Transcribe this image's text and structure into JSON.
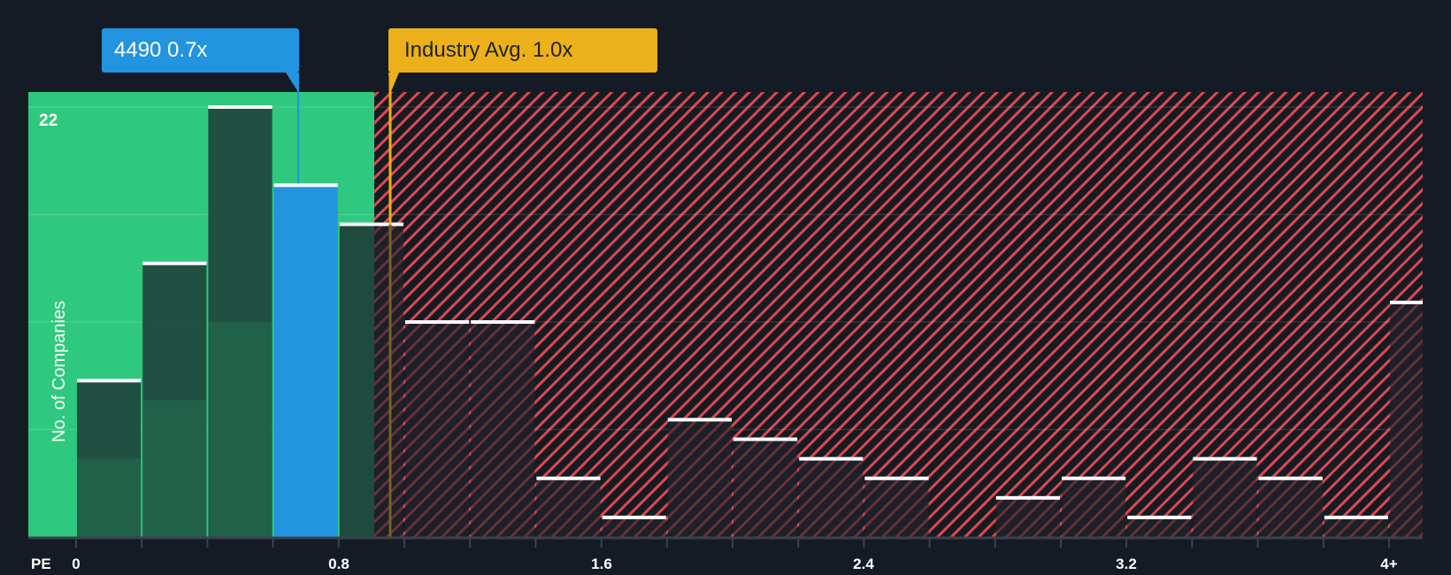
{
  "chart_data": {
    "type": "bar",
    "title": "",
    "xlabel": "PE",
    "ylabel": "No. of Companies",
    "x_tick_labels": [
      "0",
      "0.8",
      "1.6",
      "2.4",
      "3.2",
      "4+"
    ],
    "x_tick_values": [
      0,
      0.8,
      1.6,
      2.4,
      3.2,
      4.0
    ],
    "y_tick_labels": [
      "22"
    ],
    "ylim": [
      0,
      22
    ],
    "grid": true,
    "bin_width": 0.2,
    "categories": [
      "0-0.2",
      "0.2-0.4",
      "0.4-0.6",
      "0.6-0.8",
      "0.8-1.0",
      "1.0-1.2",
      "1.2-1.4",
      "1.4-1.6",
      "1.6-1.8",
      "1.8-2.0",
      "2.0-2.2",
      "2.2-2.4",
      "2.4-2.6",
      "2.6-2.8",
      "2.8-3.0",
      "3.0-3.2",
      "3.2-3.4",
      "3.4-3.6",
      "3.6-3.8",
      "3.8-4.0",
      "4+"
    ],
    "values": [
      8,
      14,
      22,
      18,
      16,
      11,
      11,
      3,
      1,
      6,
      5,
      4,
      3,
      0,
      2,
      3,
      1,
      4,
      3,
      1,
      12
    ],
    "highlighted_bin_index": 3,
    "annotations": [
      {
        "label": "4490 0.7x",
        "value": 0.7,
        "color": "#2394df"
      },
      {
        "label": "Industry Avg. 1.0x",
        "value": 1.0,
        "color": "#ecb01a"
      }
    ],
    "zones": [
      {
        "name": "below-industry-average",
        "range": [
          0,
          0.95
        ],
        "color": "#2ec97e"
      },
      {
        "name": "above-industry-average",
        "range": [
          0.95,
          4.2
        ],
        "color": "#e0484a",
        "pattern": "diagonal-hatch"
      }
    ]
  },
  "callouts": {
    "company": "4490 0.7x",
    "industry": "Industry Avg. 1.0x"
  },
  "axis": {
    "x_title": "PE",
    "y_title": "No. of Companies",
    "y_top": "22",
    "ticks": [
      "0",
      "0.8",
      "1.6",
      "2.4",
      "3.2",
      "4+"
    ]
  },
  "colors": {
    "background": "#151b24",
    "green_zone": "#2ec97e",
    "bar_dark": "#214a40",
    "highlight": "#2394df",
    "industry": "#ecb01a",
    "hatch": "#e0484a",
    "bar_top": "#ffffff"
  }
}
